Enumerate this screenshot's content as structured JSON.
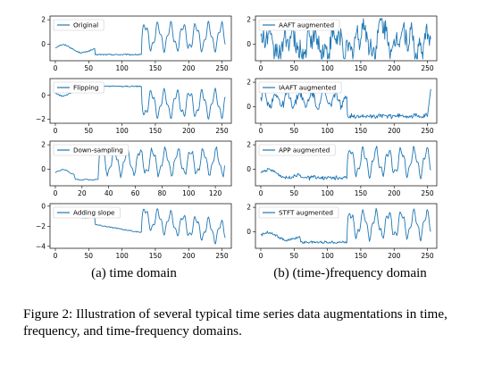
{
  "subcaptions": {
    "a": "(a) time domain",
    "b": "(b) (time-)frequency domain"
  },
  "figure_caption": "Figure 2: Illustration of several typical time series data augmentations in time, frequency, and time-frequency domains.",
  "line_color": "#1f77b4",
  "chart_data": [
    {
      "type": "line",
      "legend": "Original",
      "legend_position": "upper left",
      "xlim": [
        -8,
        264
      ],
      "ylim": [
        -1.35,
        2.3
      ],
      "xticks": [
        0,
        50,
        100,
        150,
        200,
        250
      ],
      "yticks": [
        0,
        2
      ],
      "signal": "sine",
      "flatStart": 60,
      "flatEnd": 130,
      "flatLevel": -0.85,
      "noise": 0.05
    },
    {
      "type": "line",
      "legend": "Flipping",
      "legend_position": "upper left",
      "xlim": [
        -8,
        264
      ],
      "ylim": [
        -2.35,
        1.4
      ],
      "xticks": [
        0,
        50,
        100,
        150,
        200,
        250
      ],
      "yticks": [
        -2,
        0
      ],
      "signal": "sine",
      "flip": true,
      "flatStart": 60,
      "flatEnd": 130,
      "flatLevel": -0.85,
      "noise": 0.05
    },
    {
      "type": "line",
      "legend": "Down-sampling",
      "legend_position": "upper left",
      "xlim": [
        -4,
        132
      ],
      "ylim": [
        -1.35,
        2.3
      ],
      "xticks": [
        0,
        20,
        40,
        60,
        80,
        100,
        120
      ],
      "yticks": [
        0,
        2
      ],
      "signal": "sine",
      "downsample": 2,
      "flatStart": 30,
      "flatEnd": 65,
      "flatLevel": -0.85,
      "noise": 0.05
    },
    {
      "type": "line",
      "legend": "Adding slope",
      "legend_position": "upper left",
      "xlim": [
        -8,
        264
      ],
      "ylim": [
        -4.2,
        0.25
      ],
      "xticks": [
        0,
        50,
        100,
        150,
        200,
        250
      ],
      "yticks": [
        -4,
        -2,
        0
      ],
      "signal": "sine",
      "slope": -0.0115,
      "flatStart": 60,
      "flatEnd": 130,
      "flatLevel": -0.85,
      "noise": 0.05
    },
    {
      "type": "line",
      "legend": "AAFT augmented",
      "legend_position": "upper left",
      "xlim": [
        -8,
        264
      ],
      "ylim": [
        -1.35,
        2.3
      ],
      "xticks": [
        0,
        50,
        100,
        150,
        200,
        250
      ],
      "yticks": [
        0,
        2
      ],
      "signal": "random",
      "noise": 0.9
    },
    {
      "type": "line",
      "legend": "IAAFT augmented",
      "legend_position": "upper left",
      "xlim": [
        -8,
        264
      ],
      "ylim": [
        -1.35,
        2.3
      ],
      "xticks": [
        0,
        50,
        100,
        150,
        200,
        250
      ],
      "yticks": [
        0,
        2
      ],
      "signal": "iaaft",
      "noise": 0.35
    },
    {
      "type": "line",
      "legend": "APP augmented",
      "legend_position": "upper left",
      "xlim": [
        -8,
        264
      ],
      "ylim": [
        -1.35,
        2.3
      ],
      "xticks": [
        0,
        50,
        100,
        150,
        200,
        250
      ],
      "yticks": [
        0,
        2
      ],
      "signal": "sine",
      "flatStart": 60,
      "flatEnd": 130,
      "flatLevel": -0.7,
      "noise": 0.12,
      "flatWiggle": 0.18
    },
    {
      "type": "line",
      "legend": "STFT augmented",
      "legend_position": "upper left",
      "xlim": [
        -8,
        264
      ],
      "ylim": [
        -1.35,
        2.3
      ],
      "xticks": [
        0,
        50,
        100,
        150,
        200,
        250
      ],
      "yticks": [
        0,
        2
      ],
      "signal": "sine",
      "flatStart": 60,
      "flatEnd": 130,
      "flatLevel": -0.85,
      "noise": 0.1
    }
  ]
}
